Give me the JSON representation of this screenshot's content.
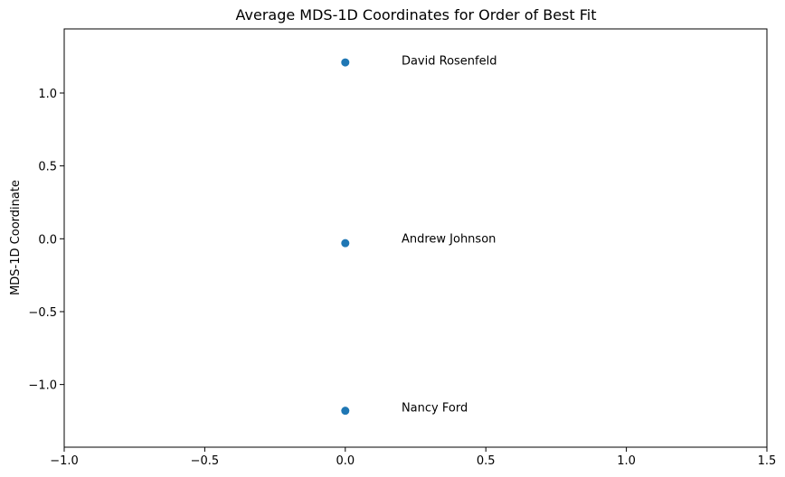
{
  "chart_data": {
    "type": "scatter",
    "title": "Average MDS-1D Coordinates for Order of Best Fit",
    "xlabel": "",
    "ylabel": "MDS-1D Coordinate",
    "xlim": [
      -1.0,
      1.5
    ],
    "ylim": [
      -1.43,
      1.44
    ],
    "xticks": [
      -1.0,
      -0.5,
      0.0,
      0.5,
      1.0,
      1.5
    ],
    "xtick_labels": [
      "−1.0",
      "−0.5",
      "0.0",
      "0.5",
      "1.0",
      "1.5"
    ],
    "yticks": [
      -1.0,
      -0.5,
      0.0,
      0.5,
      1.0
    ],
    "ytick_labels": [
      "−1.0",
      "−0.5",
      "0.0",
      "0.5",
      "1.0"
    ],
    "grid": false,
    "marker_color": "#1f77b4",
    "points": [
      {
        "x": 0.0,
        "y": 1.21,
        "label": "David Rosenfeld"
      },
      {
        "x": 0.0,
        "y": -0.03,
        "label": "Andrew Johnson"
      },
      {
        "x": 0.0,
        "y": -1.18,
        "label": "Nancy Ford"
      }
    ],
    "annotations": [
      {
        "text": "David Rosenfeld",
        "x": 0.2,
        "y": 1.22
      },
      {
        "text": "Andrew Johnson",
        "x": 0.2,
        "y": -0.0
      },
      {
        "text": "Nancy Ford",
        "x": 0.2,
        "y": -1.16
      }
    ]
  }
}
